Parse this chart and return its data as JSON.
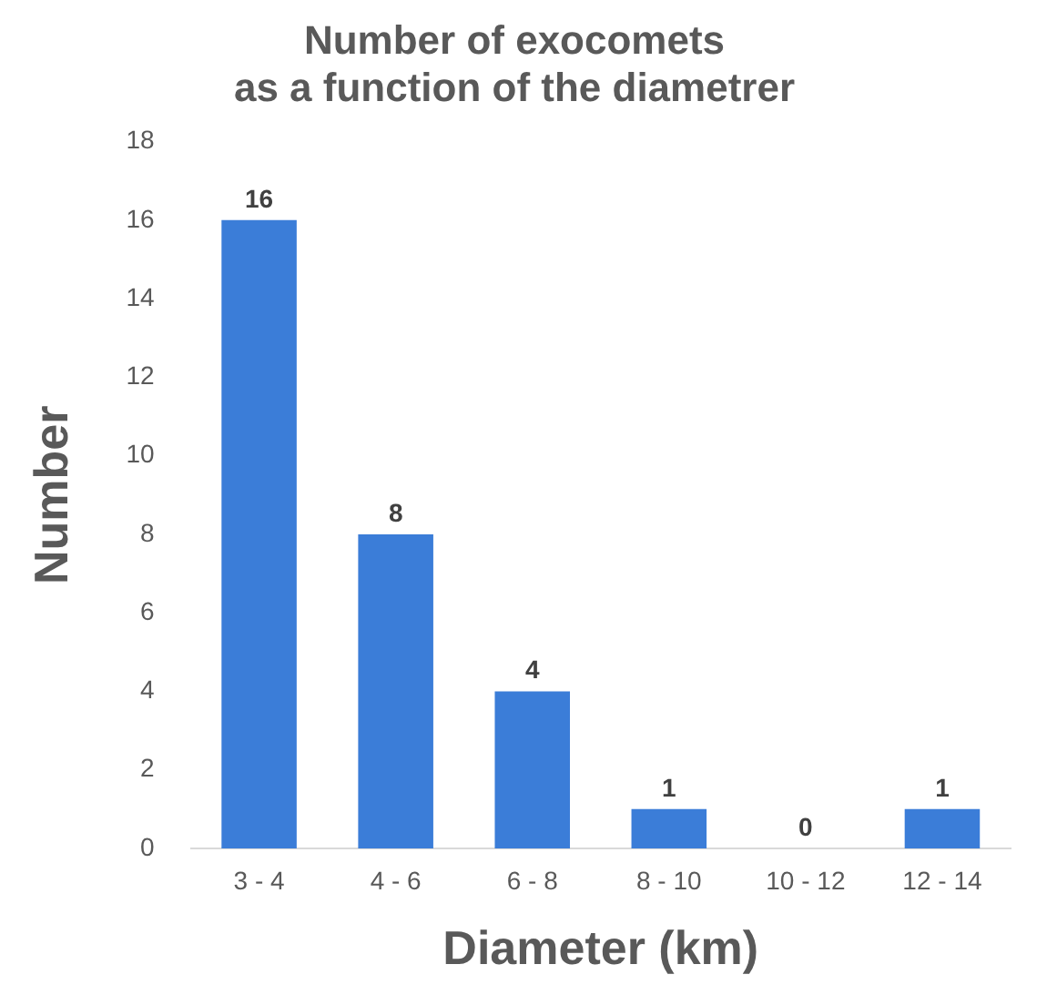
{
  "chart_data": {
    "type": "bar",
    "title": "Number of exocomets\nas a function of the diametrer",
    "xlabel": "Diameter (km)",
    "ylabel": "Number",
    "categories": [
      "3 - 4",
      "4 - 6",
      "6 - 8",
      "8 - 10",
      "10 - 12",
      "12 - 14"
    ],
    "values": [
      16,
      8,
      4,
      1,
      0,
      1
    ],
    "color": "#3b7dd8",
    "ylim": [
      0,
      18
    ],
    "yticks": [
      0,
      2,
      4,
      6,
      8,
      10,
      12,
      14,
      16,
      18
    ],
    "grid": false,
    "data_labels": true,
    "legend": false
  }
}
